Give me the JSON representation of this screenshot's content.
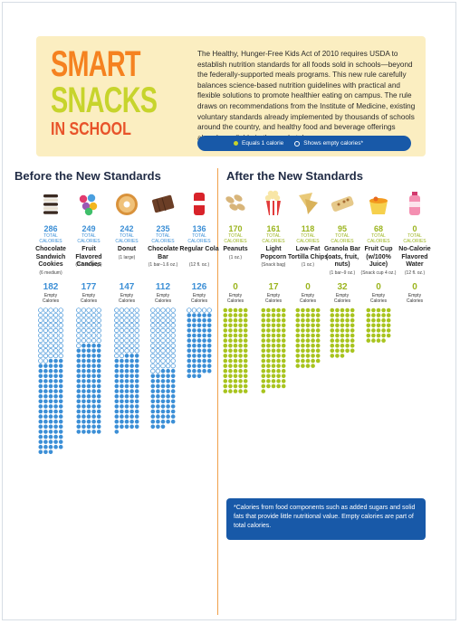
{
  "header": {
    "title_line1": "SMART",
    "title_line2": "SNACKS",
    "title_line3": "IN SCHOOL",
    "intro": "The Healthy, Hunger-Free Kids Act of 2010 requires USDA to establish nutrition standards for all foods sold in schools—beyond the federally-supported meals programs. This new rule carefully balances science-based nutrition guidelines with practical and flexible solutions to promote healthier eating on campus. The rule draws on recommendations from the Institute of Medicine, existing voluntary standards already implemented by thousands of schools around the country, and healthy food and beverage offerings already available in the marketplace.",
    "legend_filled": "Equals 1 calorie",
    "legend_empty": "Shows empty calories*"
  },
  "sections": {
    "before": "Before the New Standards",
    "after": "After the New Standards"
  },
  "labels": {
    "total": "TOTAL",
    "calories": "CALORIES",
    "empty": "Empty",
    "empty_calories": "Calories"
  },
  "colors": {
    "before": "#3c8fd6",
    "after": "#a8c41e",
    "legend_bar": "#1859a8",
    "divider": "#f0a04b"
  },
  "footnote": "*Calories from food components such as added sugars and solid fats that provide little nutritional value. Empty calories are part of total calories.",
  "chart_data": {
    "type": "bar",
    "series": [
      {
        "name": "Before the New Standards",
        "items": [
          {
            "name": "Chocolate Sandwich Cookies",
            "serving": "(6 medium)",
            "total": 286,
            "empty": 182,
            "icon": "cookies-icon"
          },
          {
            "name": "Fruit Flavored Candies",
            "serving": "(2.2 oz. pkg.)",
            "total": 249,
            "empty": 177,
            "icon": "candies-icon"
          },
          {
            "name": "Donut",
            "serving": "(1 large)",
            "total": 242,
            "empty": 147,
            "icon": "donut-icon"
          },
          {
            "name": "Chocolate Bar",
            "serving": "(1 bar–1.6 oz.)",
            "total": 235,
            "empty": 112,
            "icon": "chocolate-bar-icon"
          },
          {
            "name": "Regular Cola",
            "serving": "(12 fl. oz.)",
            "total": 136,
            "empty": 126,
            "icon": "cola-can-icon"
          }
        ]
      },
      {
        "name": "After the New Standards",
        "items": [
          {
            "name": "Peanuts",
            "serving": "(1 oz.)",
            "total": 170,
            "empty": 0,
            "icon": "peanuts-icon"
          },
          {
            "name": "Light Popcorn",
            "serving": "(Snack bag)",
            "total": 161,
            "empty": 17,
            "icon": "popcorn-icon"
          },
          {
            "name": "Low-Fat Tortilla Chips",
            "serving": "(1 oz.)",
            "total": 118,
            "empty": 0,
            "icon": "tortilla-chips-icon"
          },
          {
            "name": "Granola Bar (oats, fruit, nuts)",
            "serving": "(1 bar–9 oz.)",
            "total": 95,
            "empty": 32,
            "icon": "granola-bar-icon"
          },
          {
            "name": "Fruit Cup (w/100% Juice)",
            "serving": "(Snack cup 4 oz.)",
            "total": 68,
            "empty": 0,
            "icon": "fruit-cup-icon"
          },
          {
            "name": "No-Calorie Flavored Water",
            "serving": "(12 fl. oz.)",
            "total": 0,
            "empty": 0,
            "icon": "water-bottle-icon"
          }
        ]
      }
    ]
  }
}
